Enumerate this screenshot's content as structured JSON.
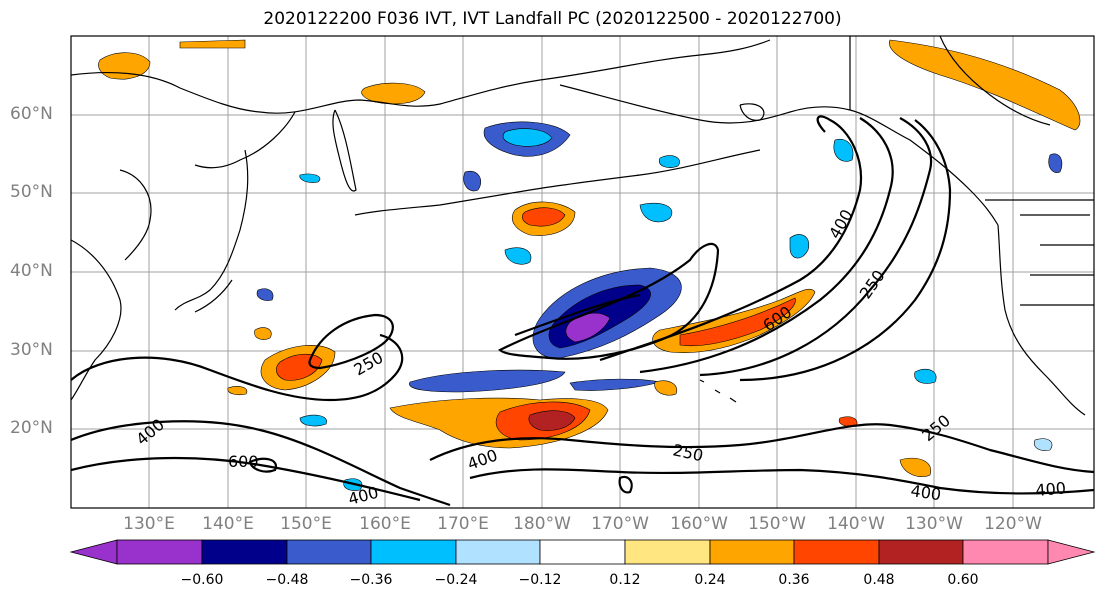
{
  "title": "2020122200 F036 IVT, IVT Landfall PC (2020122500 - 2020122700)",
  "lat_labels": [
    "60°N",
    "50°N",
    "40°N",
    "30°N",
    "20°N"
  ],
  "lon_labels": [
    "130°E",
    "140°E",
    "150°E",
    "160°E",
    "170°E",
    "180°W",
    "170°W",
    "160°W",
    "150°W",
    "140°W",
    "130°W",
    "120°W"
  ],
  "colorbar": {
    "tick_labels": [
      "−0.60",
      "−0.48",
      "−0.36",
      "−0.24",
      "−0.12",
      "0.12",
      "0.24",
      "0.36",
      "0.48",
      "0.60"
    ],
    "colors": [
      "#9932cc",
      "#00008b",
      "#3a5bcc",
      "#00bfff",
      "#b0e2ff",
      "#ffffff",
      "#ffe680",
      "#ffa500",
      "#ff4500",
      "#b22222",
      "#ff88b0"
    ]
  },
  "contour_labels": [
    "400",
    "250",
    "600",
    "400",
    "250",
    "250",
    "400",
    "250",
    "400",
    "400",
    "600",
    "400"
  ],
  "colors": {
    "land_line": "#000000",
    "grid": "#a0a0a0",
    "contour": "#000000",
    "axis_label": "#808080"
  }
}
